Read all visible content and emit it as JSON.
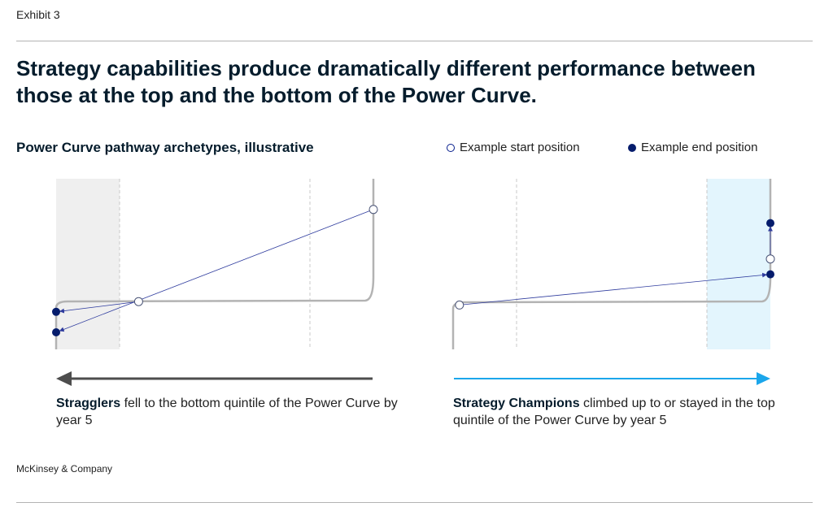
{
  "exhibit": "Exhibit 3",
  "title": "Strategy capabilities produce dramatically different performance between those at the top and the bottom of the Power Curve.",
  "subtitle": "Power Curve pathway archetypes, illustrative",
  "legend": {
    "start": "Example start position",
    "end": "Example end position"
  },
  "colors": {
    "curve": "#b3b3b3",
    "path": "#2f3c9e",
    "end_dot": "#051c6c",
    "bottom_band": "#efefef",
    "top_band": "#e3f5fd",
    "left_arrow": "#4d4d4d",
    "right_arrow": "#1ba6eb"
  },
  "captions": {
    "left": {
      "bold": "Stragglers",
      "rest": " fell to the bottom quintile of the Power Curve by year 5"
    },
    "right": {
      "bold": "Strategy Champions",
      "rest": " climbed up to or stayed in the top quintile of the Power Curve by year 5"
    }
  },
  "footer": "McKinsey & Company",
  "chart_data": [
    {
      "type": "line",
      "name": "stragglers",
      "xlim": [
        0,
        100
      ],
      "ylim": [
        0,
        100
      ],
      "highlight_band": {
        "x": [
          0,
          20
        ],
        "label": "bottom quintile"
      },
      "divider_x": [
        20,
        80
      ],
      "pathways": [
        {
          "start": [
            26,
            28
          ],
          "end": [
            0,
            22
          ]
        },
        {
          "start": [
            100,
            82
          ],
          "end": [
            0,
            10
          ]
        }
      ]
    },
    {
      "type": "line",
      "name": "strategy-champions",
      "xlim": [
        0,
        100
      ],
      "ylim": [
        0,
        100
      ],
      "highlight_band": {
        "x": [
          80,
          100
        ],
        "label": "top quintile"
      },
      "divider_x": [
        20,
        80
      ],
      "pathways": [
        {
          "start": [
            2,
            26
          ],
          "end": [
            100,
            44
          ]
        },
        {
          "start": [
            100,
            53
          ],
          "end": [
            100,
            74
          ]
        }
      ]
    }
  ]
}
